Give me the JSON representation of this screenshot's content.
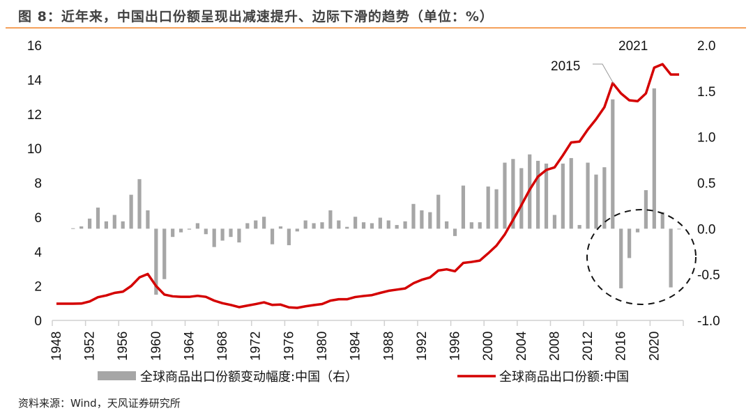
{
  "title": "图 8：近年来，中国出口份额呈现出减速提升、边际下滑的趋势（单位：%）",
  "source": "资料来源：Wind，天风证券研究所",
  "colors": {
    "title_rule": "#f5a05a",
    "line": "#d40000",
    "bars": "#a6a6a6"
  },
  "chart_data": {
    "type": "bar+line",
    "x": [
      1948,
      1949,
      1950,
      1951,
      1952,
      1953,
      1954,
      1955,
      1956,
      1957,
      1958,
      1959,
      1960,
      1961,
      1962,
      1963,
      1964,
      1965,
      1966,
      1967,
      1968,
      1969,
      1970,
      1971,
      1972,
      1973,
      1974,
      1975,
      1976,
      1977,
      1978,
      1979,
      1980,
      1981,
      1982,
      1983,
      1984,
      1985,
      1986,
      1987,
      1988,
      1989,
      1990,
      1991,
      1992,
      1993,
      1994,
      1995,
      1996,
      1997,
      1998,
      1999,
      2000,
      2001,
      2002,
      2003,
      2004,
      2005,
      2006,
      2007,
      2008,
      2009,
      2010,
      2011,
      2012,
      2013,
      2014,
      2015,
      2016,
      2017,
      2018,
      2019,
      2020,
      2021,
      2022,
      2023
    ],
    "x_tick_labels": [
      "1948",
      "1952",
      "1956",
      "1960",
      "1964",
      "1968",
      "1972",
      "1976",
      "1980",
      "1984",
      "1988",
      "1992",
      "1996",
      "2000",
      "2004",
      "2008",
      "2012",
      "2016",
      "2020"
    ],
    "left_axis": {
      "ylim": [
        0,
        16
      ],
      "ticks": [
        "0",
        "2",
        "4",
        "6",
        "8",
        "10",
        "12",
        "14",
        "16"
      ]
    },
    "right_axis": {
      "ylim": [
        -1.0,
        2.0
      ],
      "ticks": [
        "-1.0",
        "-0.5",
        "0.0",
        "0.5",
        "1.0",
        "1.5",
        "2.0"
      ]
    },
    "series": [
      {
        "name": "全球商品出口份额变动幅度:中国（右）",
        "type": "bar",
        "axis": "right",
        "values": [
          null,
          null,
          0.005,
          0.025,
          0.11,
          0.23,
          0.08,
          0.15,
          0.08,
          0.37,
          0.54,
          0.2,
          -0.72,
          -0.55,
          -0.09,
          -0.04,
          -0.01,
          0.06,
          -0.06,
          -0.2,
          -0.13,
          -0.09,
          -0.15,
          0.06,
          0.09,
          0.13,
          -0.17,
          0.025,
          -0.18,
          -0.03,
          0.09,
          0.06,
          0.07,
          0.2,
          0.09,
          0.02,
          0.13,
          0.07,
          0.06,
          0.12,
          0.09,
          0.04,
          0.08,
          0.27,
          0.2,
          0.18,
          0.37,
          0.08,
          -0.08,
          0.47,
          0.07,
          0.07,
          0.46,
          0.43,
          0.72,
          0.76,
          0.66,
          0.81,
          0.74,
          0.71,
          0.15,
          0.71,
          0.77,
          0.04,
          0.72,
          0.59,
          0.67,
          1.41,
          -0.65,
          -0.32,
          -0.04,
          0.42,
          1.53,
          0.18,
          -0.64,
          -0.005
        ]
      },
      {
        "name": "全球商品出口份额:中国",
        "type": "line",
        "axis": "left",
        "values": [
          0.97,
          0.97,
          0.97,
          0.98,
          1.1,
          1.35,
          1.45,
          1.6,
          1.67,
          2.0,
          2.5,
          2.7,
          2.0,
          1.5,
          1.4,
          1.37,
          1.37,
          1.43,
          1.37,
          1.15,
          1.0,
          0.9,
          0.77,
          0.86,
          0.95,
          1.05,
          0.9,
          0.92,
          0.76,
          0.73,
          0.82,
          0.89,
          0.95,
          1.15,
          1.23,
          1.23,
          1.36,
          1.42,
          1.47,
          1.6,
          1.72,
          1.79,
          1.86,
          2.16,
          2.36,
          2.5,
          2.9,
          2.97,
          2.86,
          3.34,
          3.4,
          3.48,
          3.9,
          4.35,
          5.0,
          5.85,
          6.7,
          7.6,
          8.36,
          8.75,
          8.9,
          9.6,
          10.35,
          10.4,
          11.1,
          11.7,
          12.4,
          13.8,
          13.2,
          12.8,
          12.75,
          13.2,
          14.7,
          14.9,
          14.3,
          14.3
        ]
      }
    ],
    "annotations": [
      "2015",
      "2021"
    ],
    "grid": false,
    "legend": "bottom"
  }
}
